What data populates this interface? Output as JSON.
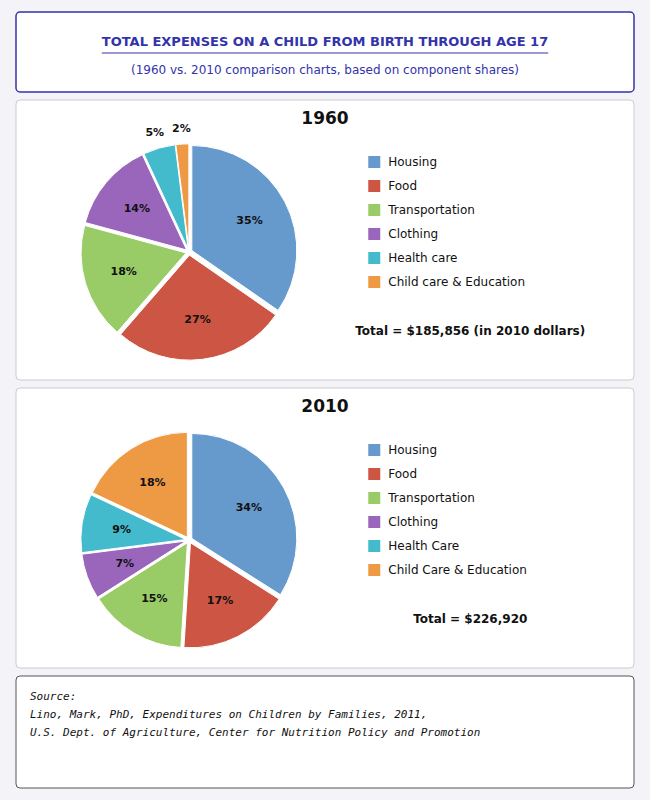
{
  "title": "TOTAL EXPENSES ON A CHILD FROM BIRTH THROUGH AGE 17",
  "subtitle": "(1960 vs. 2010 comparison charts, based on component shares)",
  "annotations": [
    "Source:\nLino, Mark, PhD, Expenditures on Children by Families, 2011,\nU.S. Dept. of Agriculture, Center for Nutrition Policy and Promotion"
  ],
  "chart_data": [
    {
      "type": "pie",
      "title": "1960",
      "categories": [
        "Housing",
        "Food",
        "Transportation",
        "Clothing",
        "Health care",
        "Child care & Education"
      ],
      "values": [
        35,
        27,
        18,
        14,
        5,
        2
      ],
      "value_labels": [
        "35%",
        "27%",
        "18%",
        "14%",
        "5%",
        "2%"
      ],
      "colors": [
        "#6699CC",
        "#CC5544",
        "#99CC66",
        "#9966BB",
        "#44BBCC",
        "#EE9944"
      ],
      "data_labels": true,
      "legend": "right",
      "annotations": [
        "Total = $185,856 (in 2010 dollars)"
      ]
    },
    {
      "type": "pie",
      "title": "2010",
      "categories": [
        "Housing",
        "Food",
        "Transportation",
        "Clothing",
        "Health Care",
        "Child Care & Education"
      ],
      "values": [
        34,
        17,
        15,
        7,
        9,
        18
      ],
      "value_labels": [
        "34%",
        "17%",
        "15%",
        "7%",
        "9%",
        "18%"
      ],
      "colors": [
        "#6699CC",
        "#CC5544",
        "#99CC66",
        "#9966BB",
        "#44BBCC",
        "#EE9944"
      ],
      "data_labels": true,
      "legend": "right",
      "annotations": [
        "Total = $226,920"
      ]
    }
  ]
}
